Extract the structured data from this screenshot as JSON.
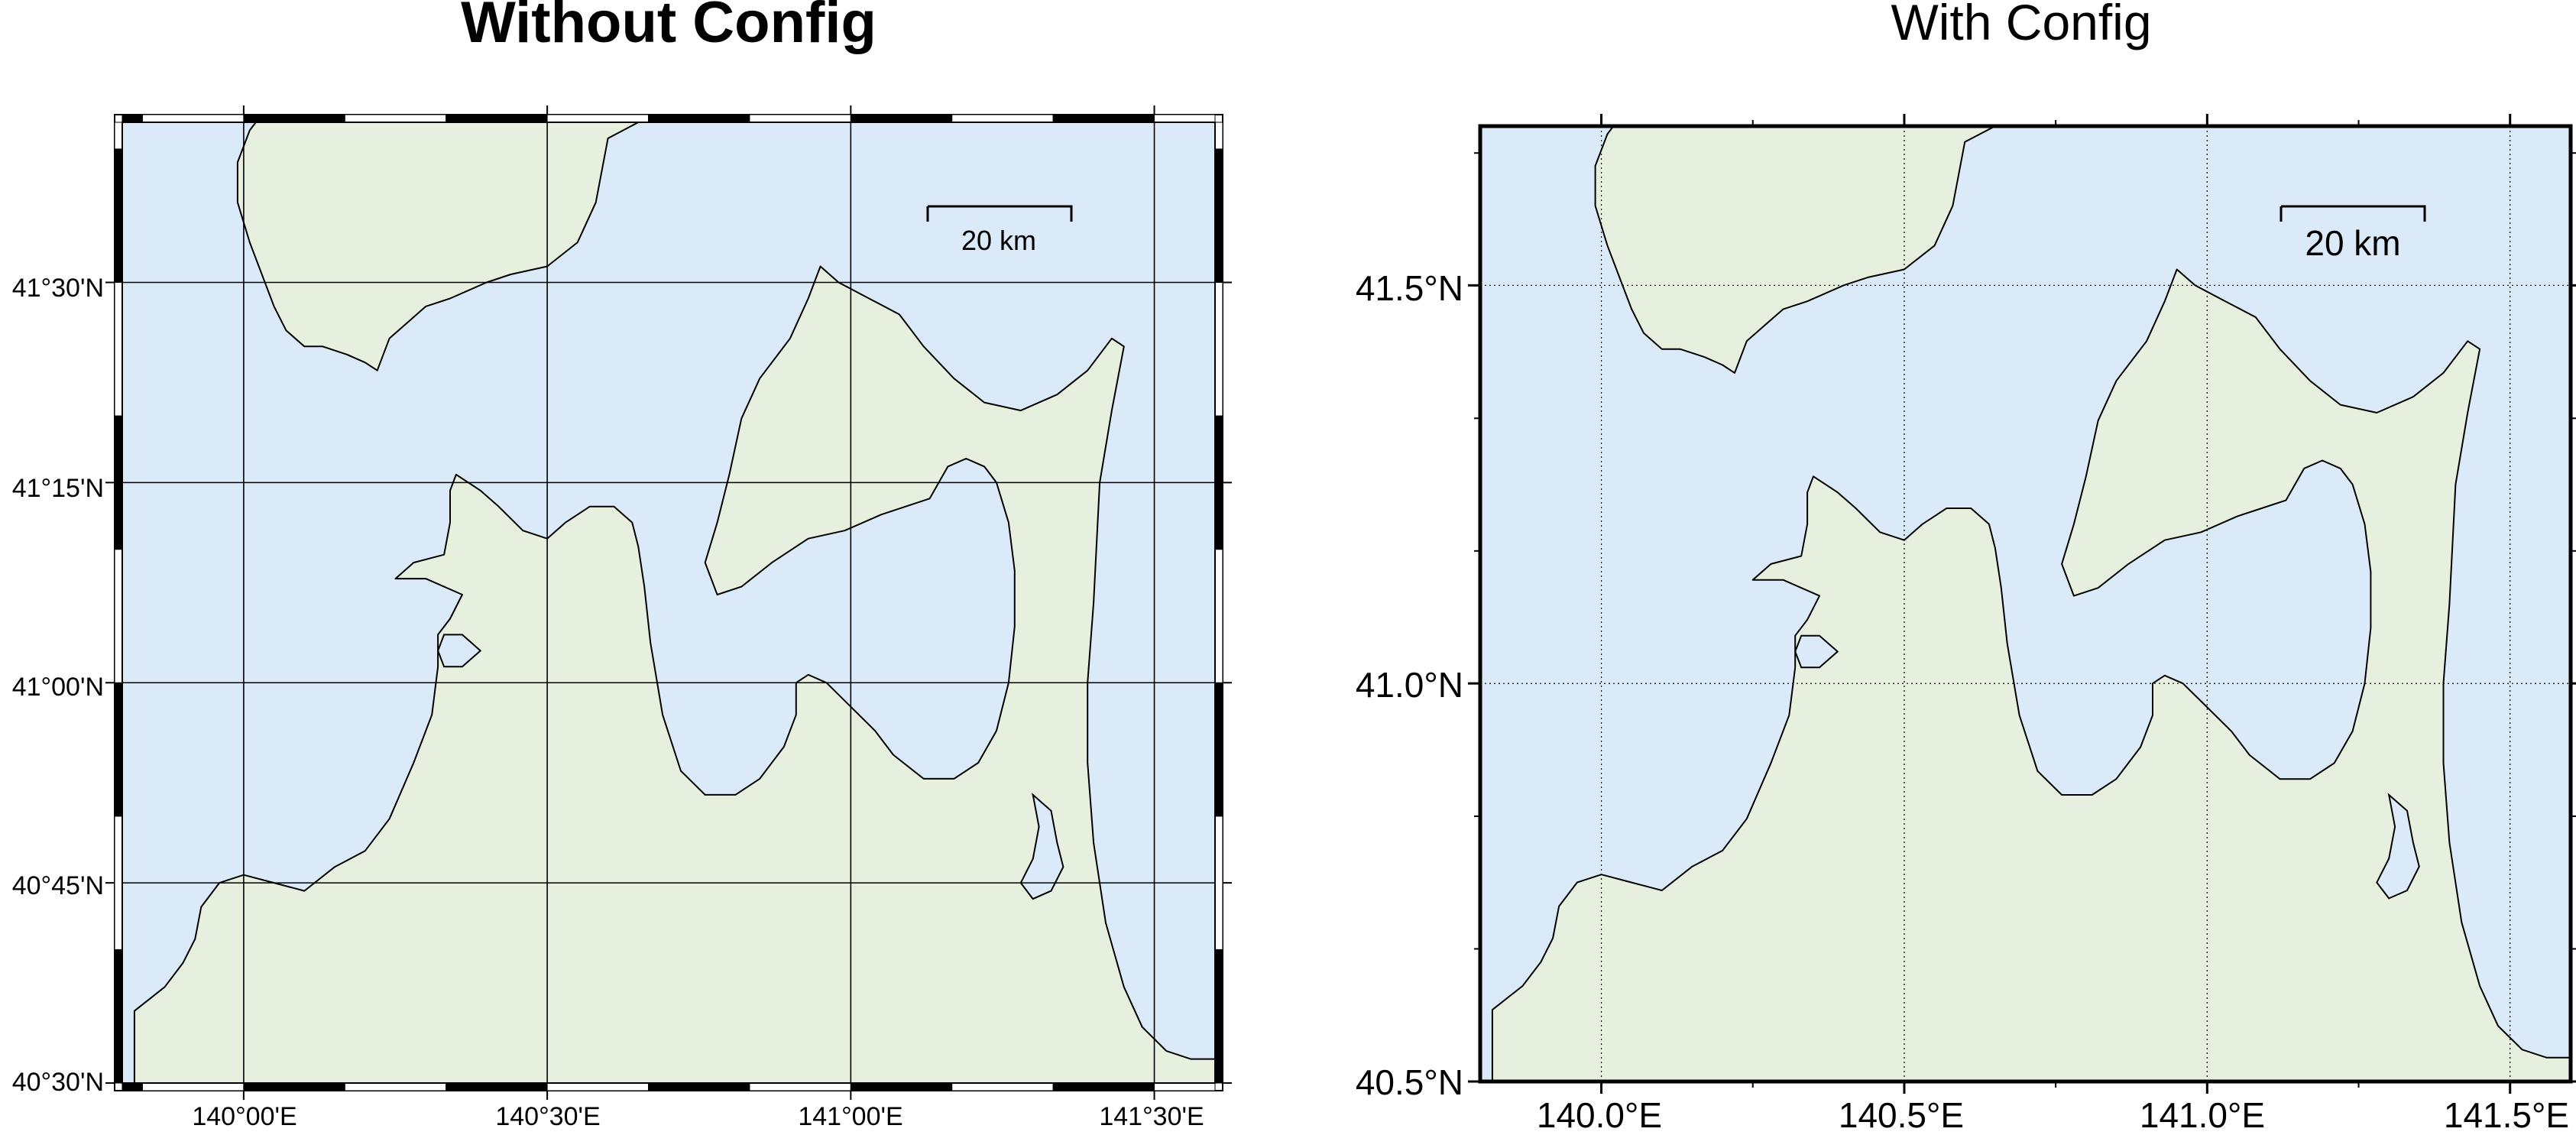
{
  "colors": {
    "water": "#dbeaf8",
    "land": "#e7efde",
    "coast": "#000000",
    "frame_dark": "#000000",
    "frame_light": "#ffffff"
  },
  "maps": [
    {
      "title": "Without Config",
      "title_bold": true,
      "frame": "fancy",
      "grid_style": "solid",
      "x_ticks": [
        {
          "value": 140.0,
          "label": "140°00'E"
        },
        {
          "value": 140.5,
          "label": "140°30'E"
        },
        {
          "value": 141.0,
          "label": "141°00'E"
        },
        {
          "value": 141.5,
          "label": "141°30'E"
        }
      ],
      "y_ticks": [
        {
          "value": 40.5,
          "label": "40°30'N"
        },
        {
          "value": 40.75,
          "label": "40°45'N"
        },
        {
          "value": 41.0,
          "label": "41°00'N"
        },
        {
          "value": 41.25,
          "label": "41°15'N"
        },
        {
          "value": 41.5,
          "label": "41°30'N"
        }
      ],
      "scale_bar": {
        "label": "20 km",
        "length_km": 20
      }
    },
    {
      "title": "With Config",
      "title_bold": false,
      "frame": "plain",
      "grid_style": "dotted",
      "x_ticks": [
        {
          "value": 140.0,
          "label": "140.0°E"
        },
        {
          "value": 140.5,
          "label": "140.5°E"
        },
        {
          "value": 141.0,
          "label": "141.0°E"
        },
        {
          "value": 141.5,
          "label": "141.5°E"
        }
      ],
      "y_ticks": [
        {
          "value": 40.5,
          "label": "40.5°N"
        },
        {
          "value": 41.0,
          "label": "41.0°N"
        },
        {
          "value": 41.5,
          "label": "41.5°N"
        }
      ],
      "minor_y_step": 0.1666,
      "minor_x_step": 0.25,
      "scale_bar": {
        "label": "20 km",
        "length_km": 20
      }
    }
  ],
  "region": {
    "lon_range": [
      139.8,
      141.6
    ],
    "lat_range": [
      40.5,
      41.7
    ]
  },
  "coastline": {
    "hokkaido_peninsula": [
      [
        139.82,
        41.7
      ],
      [
        140.65,
        41.7
      ],
      [
        140.6,
        41.68
      ],
      [
        140.58,
        41.6
      ],
      [
        140.55,
        41.55
      ],
      [
        140.5,
        41.52
      ],
      [
        140.44,
        41.51
      ],
      [
        140.4,
        41.5
      ],
      [
        140.34,
        41.48
      ],
      [
        140.3,
        41.47
      ],
      [
        140.27,
        41.45
      ],
      [
        140.24,
        41.43
      ],
      [
        140.23,
        41.41
      ],
      [
        140.22,
        41.39
      ],
      [
        140.2,
        41.4
      ],
      [
        140.17,
        41.41
      ],
      [
        140.13,
        41.42
      ],
      [
        140.1,
        41.42
      ],
      [
        140.07,
        41.44
      ],
      [
        140.05,
        41.47
      ],
      [
        140.03,
        41.51
      ],
      [
        140.01,
        41.55
      ],
      [
        139.99,
        41.6
      ],
      [
        139.99,
        41.65
      ],
      [
        140.01,
        41.69
      ],
      [
        140.02,
        41.7
      ]
    ],
    "honshu_main": [
      [
        139.82,
        40.5
      ],
      [
        139.82,
        40.59
      ],
      [
        139.87,
        40.62
      ],
      [
        139.9,
        40.65
      ],
      [
        139.92,
        40.68
      ],
      [
        139.93,
        40.72
      ],
      [
        139.96,
        40.75
      ],
      [
        140.0,
        40.76
      ],
      [
        140.05,
        40.75
      ],
      [
        140.1,
        40.74
      ],
      [
        140.15,
        40.77
      ],
      [
        140.2,
        40.79
      ],
      [
        140.24,
        40.83
      ],
      [
        140.28,
        40.9
      ],
      [
        140.31,
        40.96
      ],
      [
        140.32,
        41.02
      ],
      [
        140.32,
        41.06
      ],
      [
        140.34,
        41.08
      ],
      [
        140.36,
        41.11
      ],
      [
        140.3,
        41.13
      ],
      [
        140.25,
        41.13
      ],
      [
        140.28,
        41.15
      ],
      [
        140.33,
        41.16
      ],
      [
        140.34,
        41.2
      ],
      [
        140.34,
        41.24
      ],
      [
        140.35,
        41.26
      ],
      [
        140.39,
        41.24
      ],
      [
        140.42,
        41.22
      ],
      [
        140.46,
        41.19
      ],
      [
        140.5,
        41.18
      ],
      [
        140.53,
        41.2
      ],
      [
        140.57,
        41.22
      ],
      [
        140.61,
        41.22
      ],
      [
        140.64,
        41.2
      ],
      [
        140.65,
        41.17
      ],
      [
        140.66,
        41.12
      ],
      [
        140.67,
        41.05
      ],
      [
        140.69,
        40.96
      ],
      [
        140.72,
        40.89
      ],
      [
        140.76,
        40.86
      ],
      [
        140.81,
        40.86
      ],
      [
        140.85,
        40.88
      ],
      [
        140.89,
        40.92
      ],
      [
        140.91,
        40.96
      ],
      [
        140.91,
        41.0
      ],
      [
        140.93,
        41.01
      ],
      [
        140.96,
        41.0
      ],
      [
        141.0,
        40.97
      ],
      [
        141.04,
        40.94
      ],
      [
        141.07,
        40.91
      ],
      [
        141.12,
        40.88
      ],
      [
        141.17,
        40.88
      ],
      [
        141.21,
        40.9
      ],
      [
        141.24,
        40.94
      ],
      [
        141.26,
        41.0
      ],
      [
        141.27,
        41.07
      ],
      [
        141.27,
        41.14
      ],
      [
        141.26,
        41.2
      ],
      [
        141.24,
        41.25
      ],
      [
        141.22,
        41.27
      ],
      [
        141.19,
        41.28
      ],
      [
        141.16,
        41.27
      ],
      [
        141.13,
        41.23
      ],
      [
        141.09,
        41.22
      ],
      [
        141.05,
        41.21
      ],
      [
        140.99,
        41.19
      ],
      [
        140.93,
        41.18
      ],
      [
        140.87,
        41.15
      ],
      [
        140.82,
        41.12
      ],
      [
        140.78,
        41.11
      ],
      [
        140.76,
        41.15
      ],
      [
        140.78,
        41.2
      ],
      [
        140.8,
        41.26
      ],
      [
        140.82,
        41.33
      ],
      [
        140.85,
        41.38
      ],
      [
        140.9,
        41.43
      ],
      [
        140.93,
        41.48
      ],
      [
        140.95,
        41.52
      ],
      [
        140.98,
        41.5
      ],
      [
        141.03,
        41.48
      ],
      [
        141.08,
        41.46
      ],
      [
        141.12,
        41.42
      ],
      [
        141.17,
        41.38
      ],
      [
        141.22,
        41.35
      ],
      [
        141.28,
        41.34
      ],
      [
        141.34,
        41.36
      ],
      [
        141.39,
        41.39
      ],
      [
        141.43,
        41.43
      ],
      [
        141.45,
        41.42
      ],
      [
        141.43,
        41.34
      ],
      [
        141.41,
        41.25
      ],
      [
        141.4,
        41.1
      ],
      [
        141.39,
        41.0
      ],
      [
        141.39,
        40.9
      ],
      [
        141.4,
        40.8
      ],
      [
        141.42,
        40.7
      ],
      [
        141.45,
        40.62
      ],
      [
        141.48,
        40.57
      ],
      [
        141.52,
        40.54
      ],
      [
        141.56,
        40.53
      ],
      [
        141.6,
        40.53
      ],
      [
        141.6,
        40.5
      ]
    ],
    "lake_ogawara": [
      [
        141.3,
        40.86
      ],
      [
        141.33,
        40.84
      ],
      [
        141.34,
        40.8
      ],
      [
        141.35,
        40.77
      ],
      [
        141.33,
        40.74
      ],
      [
        141.3,
        40.73
      ],
      [
        141.28,
        40.75
      ],
      [
        141.3,
        40.78
      ],
      [
        141.31,
        40.82
      ],
      [
        141.3,
        40.86
      ]
    ],
    "lake_jusanko": [
      [
        140.33,
        41.06
      ],
      [
        140.36,
        41.06
      ],
      [
        140.39,
        41.04
      ],
      [
        140.36,
        41.02
      ],
      [
        140.33,
        41.02
      ],
      [
        140.32,
        41.04
      ],
      [
        140.33,
        41.06
      ]
    ]
  }
}
